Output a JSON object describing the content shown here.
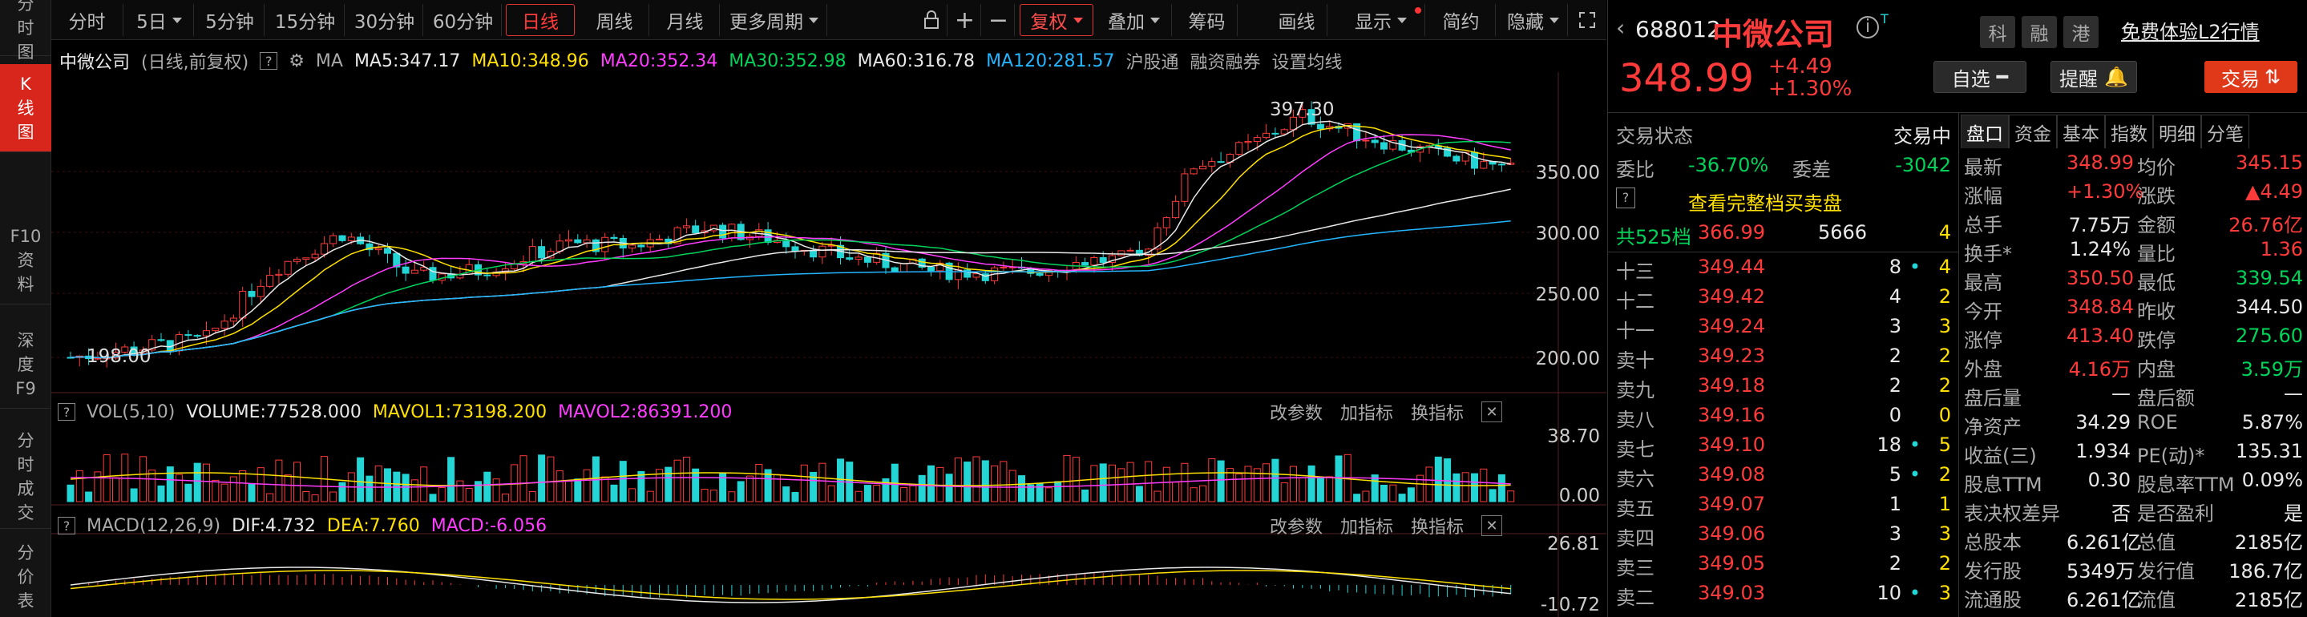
{
  "nav": {
    "items": [
      "分时图",
      "K线图",
      "F10资料",
      "深度F9",
      "分时成交",
      "分价表"
    ]
  },
  "toolbar": {
    "periods": [
      "分时",
      "5日",
      "5分钟",
      "15分钟",
      "30分钟",
      "60分钟",
      "日线",
      "周线",
      "月线",
      "更多周期"
    ],
    "adjust": "复权",
    "overlay": "叠加",
    "chips": "筹码",
    "draw": "画线",
    "display": "显示",
    "simple": "简约",
    "hide": "隐藏"
  },
  "main": {
    "stock": "中微公司",
    "mode": "(日线,前复权)",
    "ma_label": "MA",
    "ma5": "MA5:347.17",
    "ma10": "MA10:348.96",
    "ma20": "MA20:352.34",
    "ma30": "MA30:352.98",
    "ma60": "MA60:316.78",
    "ma120": "MA120:281.57",
    "hgt": "沪股通",
    "margin": "融资融券",
    "set_ma": "设置均线",
    "y_labels": [
      "350.00",
      "300.00",
      "250.00",
      "200.00"
    ],
    "high_label": "397.30",
    "low_label": "198.00"
  },
  "vol": {
    "title": "VOL(5,10)",
    "volume": "VOLUME:77528.000",
    "mavol1": "MAVOL1:73198.200",
    "mavol2": "MAVOL2:86391.200",
    "btn1": "改参数",
    "btn2": "加指标",
    "btn3": "换指标",
    "y_top": "38.70",
    "y_bot": "0.00"
  },
  "macd": {
    "title": "MACD(12,26,9)",
    "dif": "DIF:4.732",
    "dea": "DEA:7.760",
    "macd": "MACD:-6.056",
    "btn1": "改参数",
    "btn2": "加指标",
    "btn3": "换指标",
    "y_top": "26.81",
    "y_bot": "-10.72"
  },
  "quote": {
    "code": "688012",
    "name": "中微公司",
    "tag1": "科",
    "tag2": "融",
    "tag3": "港",
    "l2": "免费体验L2行情",
    "price": "348.99",
    "chg": "+4.49",
    "pct": "+1.30%",
    "watch": "自选",
    "alert": "提醒",
    "trade": "交易",
    "state_label": "交易状态",
    "state": "交易中",
    "wb_label": "委比",
    "wb": "-36.70%",
    "wc_label": "委差",
    "wc": "-3042",
    "full": "查看完整档买卖盘",
    "total_label": "共525档",
    "total_price": "366.99",
    "total_vol": "5666",
    "total_n": "4",
    "tabs": [
      "盘口",
      "资金",
      "基本",
      "指数",
      "明细",
      "分笔"
    ]
  },
  "asks": [
    [
      "十三",
      "349.44",
      "8",
      "4"
    ],
    [
      "十二",
      "349.42",
      "4",
      "2"
    ],
    [
      "十一",
      "349.24",
      "3",
      "3"
    ],
    [
      "卖十",
      "349.23",
      "2",
      "2"
    ],
    [
      "卖九",
      "349.18",
      "2",
      "2"
    ],
    [
      "卖八",
      "349.16",
      "0",
      "0"
    ],
    [
      "卖七",
      "349.10",
      "18",
      "5"
    ],
    [
      "卖六",
      "349.08",
      "5",
      "2"
    ],
    [
      "卖五",
      "349.07",
      "1",
      "1"
    ],
    [
      "卖四",
      "349.06",
      "3",
      "3"
    ],
    [
      "卖三",
      "349.05",
      "2",
      "2"
    ],
    [
      "卖二",
      "349.03",
      "10",
      "3"
    ]
  ],
  "stats": [
    [
      "最新",
      "348.99",
      "均价",
      "345.15"
    ],
    [
      "涨幅",
      "+1.30%",
      "涨跌",
      "▲4.49"
    ],
    [
      "总手",
      "7.75万",
      "金额",
      "26.76亿"
    ],
    [
      "换手*",
      "1.24%",
      "量比",
      "1.36"
    ],
    [
      "最高",
      "350.50",
      "最低",
      "339.54"
    ],
    [
      "今开",
      "348.84",
      "昨收",
      "344.50"
    ],
    [
      "涨停",
      "413.40",
      "跌停",
      "275.60"
    ],
    [
      "外盘",
      "4.16万",
      "内盘",
      "3.59万"
    ],
    [
      "盘后量",
      "—",
      "盘后额",
      "—"
    ],
    [
      "净资产",
      "34.29",
      "ROE",
      "5.87%"
    ],
    [
      "收益(三)",
      "1.934",
      "PE(动)*",
      "135.31"
    ],
    [
      "股息TTM",
      "0.30",
      "股息率TTM",
      "0.09%"
    ],
    [
      "表决权差异",
      "否",
      "是否盈利",
      "是"
    ],
    [
      "总股本",
      "6.261亿",
      "总值",
      "2185亿"
    ],
    [
      "发行股",
      "5349万",
      "发行值",
      "186.7亿"
    ],
    [
      "流通股",
      "6.261亿",
      "流值",
      "2185亿"
    ]
  ],
  "colors": {
    "up": "#ff3a3a",
    "down": "#23d5d5",
    "ma5": "#e8e8e8",
    "ma10": "#ffe000",
    "ma20": "#ff3cff",
    "ma30": "#00d35a",
    "ma60": "#e8e8e8",
    "ma120": "#23b5ff"
  }
}
